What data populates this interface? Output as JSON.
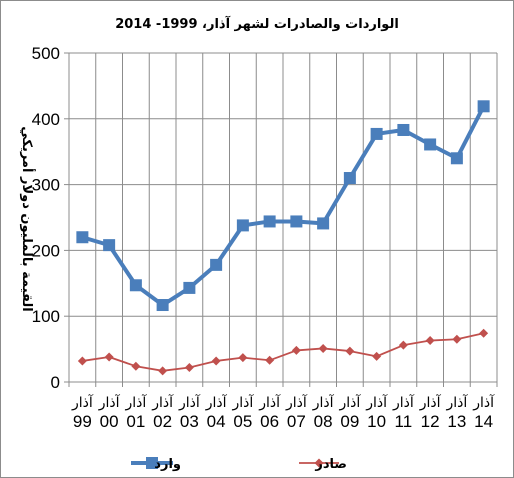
{
  "chart_data": {
    "type": "line",
    "title": "الواردات والصادرات لشهر آذار،  1999- 2014",
    "xlabel": "",
    "ylabel": "القيمة بالمليون دولار أمريكي",
    "ylim": [
      0,
      500
    ],
    "yticks": [
      0,
      100,
      200,
      300,
      400,
      500
    ],
    "grid": true,
    "legend_position": "bottom",
    "month_label": "آذار",
    "categories": [
      "99",
      "00",
      "01",
      "02",
      "03",
      "04",
      "05",
      "06",
      "07",
      "08",
      "09",
      "10",
      "11",
      "12",
      "13",
      "14"
    ],
    "series": [
      {
        "name": "وارد",
        "color": "#4a7ebb",
        "marker": "square",
        "values": [
          220,
          208,
          147,
          117,
          143,
          178,
          238,
          244,
          244,
          241,
          310,
          377,
          383,
          361,
          340,
          419
        ]
      },
      {
        "name": "صادر",
        "color": "#c0504d",
        "marker": "diamond",
        "values": [
          32,
          38,
          24,
          17,
          22,
          32,
          37,
          33,
          48,
          51,
          47,
          39,
          56,
          63,
          65,
          74
        ]
      }
    ]
  }
}
